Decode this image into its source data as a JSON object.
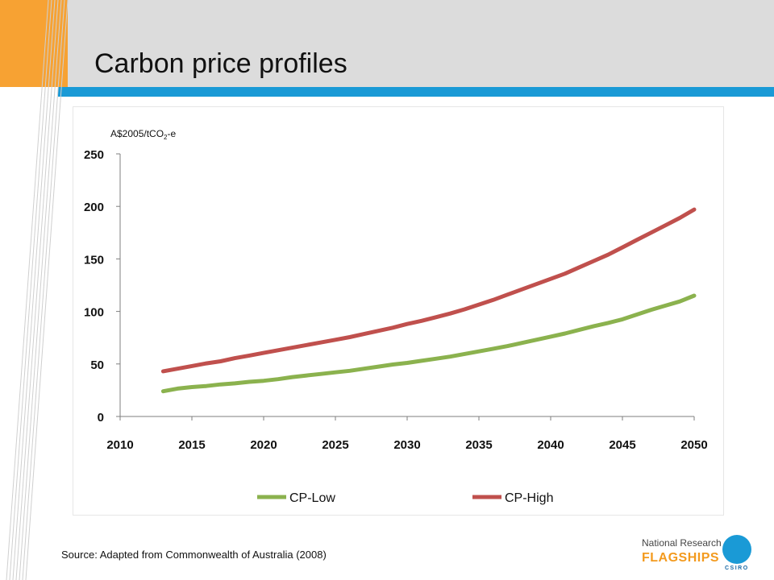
{
  "slide": {
    "title": "Carbon price profiles",
    "source": "Source: Adapted from Commonwealth of Australia (2008)"
  },
  "logo": {
    "line1": "National Research",
    "line2": "FLAGSHIPS",
    "org": "CSIRO"
  },
  "colors": {
    "header_band": "#dcdcdc",
    "orange_block": "#f7a233",
    "blue_bar": "#1a9ad6",
    "cp_low": "#8bb24e",
    "cp_high": "#c0504d"
  },
  "chart_data": {
    "type": "line",
    "title": "",
    "ylabel_prefix": "A$2005/tCO",
    "ylabel_sub": "2",
    "ylabel_suffix": "-e",
    "xlim": [
      2010,
      2050
    ],
    "ylim": [
      0,
      250
    ],
    "xticks": [
      2010,
      2015,
      2020,
      2025,
      2030,
      2035,
      2040,
      2045,
      2050
    ],
    "yticks": [
      0,
      50,
      100,
      150,
      200,
      250
    ],
    "grid": false,
    "legend_position": "bottom",
    "x": [
      2013,
      2014,
      2015,
      2016,
      2017,
      2018,
      2019,
      2020,
      2021,
      2022,
      2023,
      2024,
      2025,
      2026,
      2027,
      2028,
      2029,
      2030,
      2031,
      2032,
      2033,
      2034,
      2035,
      2036,
      2037,
      2038,
      2039,
      2040,
      2041,
      2042,
      2043,
      2044,
      2045,
      2046,
      2047,
      2048,
      2049,
      2050
    ],
    "series": [
      {
        "name": "CP-Low",
        "color": "#8bb24e",
        "values": [
          24,
          26.5,
          28,
          29,
          30.5,
          31.5,
          33,
          34,
          35.5,
          37.5,
          39,
          40.5,
          42,
          43.5,
          45.5,
          47.5,
          49.5,
          51,
          53,
          55,
          57,
          59.5,
          62,
          64.5,
          67,
          70,
          73,
          76,
          79,
          82.5,
          86,
          89,
          92.5,
          97,
          101.5,
          105.5,
          109.5,
          115
        ]
      },
      {
        "name": "CP-High",
        "color": "#c0504d",
        "values": [
          43,
          45.5,
          48,
          50.5,
          52.5,
          55.5,
          58,
          60.5,
          63,
          65.5,
          68,
          70.5,
          73,
          75.5,
          78.5,
          81.5,
          84.5,
          88,
          91,
          94.5,
          98,
          102,
          106.5,
          111,
          116,
          121,
          126,
          131,
          136,
          142,
          148,
          154,
          161,
          168,
          175,
          182,
          189,
          197
        ]
      }
    ]
  }
}
